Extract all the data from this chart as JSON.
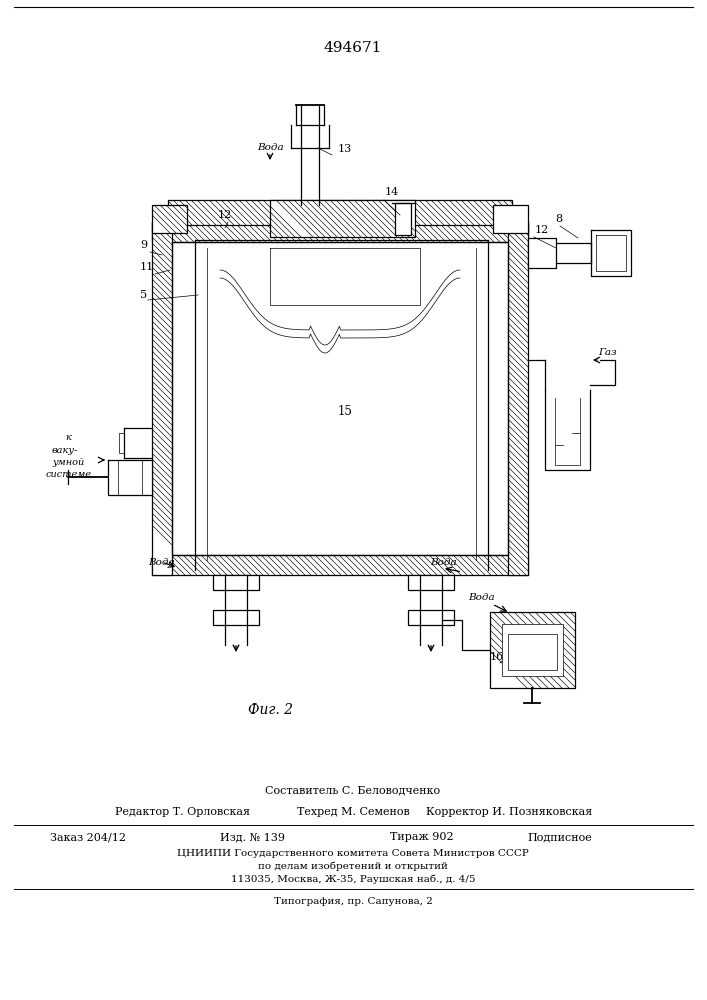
{
  "patent_number": "494671",
  "fig_label": "Фиг. 2",
  "composer": "Составитель С. Беловодченко",
  "editor": "Редактор Т. Орловская",
  "techred": "Техред М. Семенов",
  "corrector": "Корректор И. Позняковская",
  "order": "Заказ 204/12",
  "izd": "Изд. № 139",
  "tirazh": "Тираж 902",
  "podpisnoe": "Подписное",
  "tsniip1": "ЦНИИПИ Государственного комитета Совета Министров СССР",
  "tsniip2": "по делам изобретений и открытий",
  "tsniip3": "113035, Москва, Ж-35, Раушская наб., д. 4/5",
  "tipograf": "Типография, пр. Сапунова, 2",
  "bg_color": "#ffffff",
  "text_color": "#000000"
}
